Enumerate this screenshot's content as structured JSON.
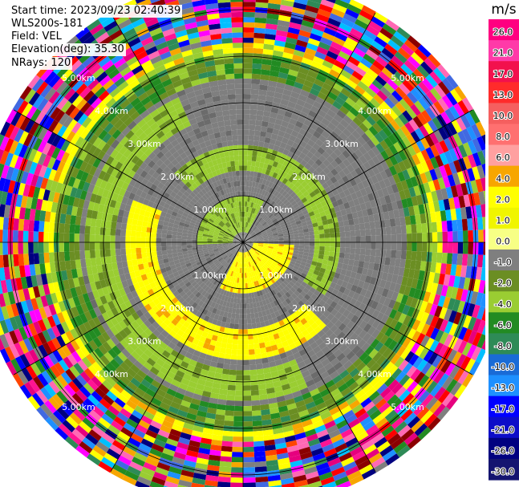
{
  "header": {
    "start_time": "Start time: 2023/09/23 02:40:39",
    "instrument": "WLS200s-181",
    "field": "Field: VEL",
    "elevation": "Elevation(deg): 35.30",
    "nrays": "NRays: 120"
  },
  "chart_data": {
    "type": "heatmap",
    "projection": "polar PPI (plan position indicator)",
    "field": "VEL",
    "units": "m/s",
    "range_rings": [
      {
        "label": "1.00km",
        "value": 1.0
      },
      {
        "label": "2.00km",
        "value": 2.0
      },
      {
        "label": "3.00km",
        "value": 3.0
      },
      {
        "label": "4.00km",
        "value": 4.0
      },
      {
        "label": "5.00km",
        "value": 5.0
      }
    ],
    "max_range_km": 5.7,
    "spokes_deg": 30,
    "nrays": 120,
    "colorbar": {
      "units": "m/s",
      "ticks": [
        "26.0",
        "21.0",
        "17.0",
        "13.0",
        "10.0",
        "8.0",
        "6.0",
        "4.0",
        "2.0",
        "1.0",
        "0.0",
        "-1.0",
        "-2.0",
        "-4.0",
        "-6.0",
        "-8.0",
        "-10.0",
        "-13.0",
        "-17.0",
        "-21.0",
        "-26.0",
        "-30.0"
      ],
      "colors": [
        "#ff0080",
        "#ff3aa8",
        "#f2114d",
        "#ff2b2b",
        "#f55f5f",
        "#ff7070",
        "#ffa0a0",
        "#f7a600",
        "#ffff00",
        "#f0f500",
        "#f7ff85",
        "#7f7f7f",
        "#6b8e23",
        "#9acd32",
        "#228b22",
        "#2e8b57",
        "#1a6bd6",
        "#1e90ff",
        "#0000ff",
        "#0d0dc8",
        "#000080",
        "#141470"
      ]
    }
  }
}
